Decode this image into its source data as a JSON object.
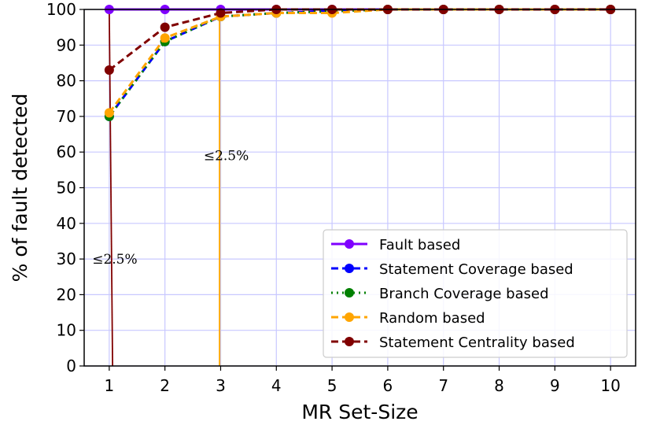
{
  "chart_data": {
    "type": "line",
    "xlabel": "MR Set-Size",
    "ylabel": "% of fault detected",
    "x": [
      1,
      2,
      3,
      4,
      5,
      6,
      7,
      8,
      9,
      10
    ],
    "xlim": [
      0.55,
      10.45
    ],
    "ylim": [
      0,
      100
    ],
    "xticks": [
      "1",
      "2",
      "3",
      "4",
      "5",
      "6",
      "7",
      "8",
      "9",
      "10"
    ],
    "yticks": [
      0,
      10,
      20,
      30,
      40,
      50,
      60,
      70,
      80,
      90,
      100
    ],
    "grid": true,
    "legend_position": "bottom-right",
    "series": [
      {
        "name": "Fault based",
        "color": "#7f00ff",
        "dash": "solid",
        "values": [
          100,
          100,
          100,
          100,
          100,
          100,
          100,
          100,
          100,
          100
        ]
      },
      {
        "name": "Statement Coverage based",
        "color": "#0000ff",
        "dash": "dashed",
        "values": [
          70,
          91,
          98,
          99,
          99.5,
          100,
          100,
          100,
          100,
          100
        ]
      },
      {
        "name": "Branch Coverage based",
        "color": "#008000",
        "dash": "dotted",
        "values": [
          70,
          91,
          98,
          99,
          99.5,
          100,
          100,
          100,
          100,
          100
        ]
      },
      {
        "name": "Random based",
        "color": "#ffa500",
        "dash": "dashed",
        "values": [
          71,
          92,
          98,
          99,
          99,
          100,
          100,
          100,
          100,
          100
        ]
      },
      {
        "name": "Statement Centrality based",
        "color": "#800000",
        "dash": "dashed",
        "values": [
          83,
          95,
          99,
          100,
          100,
          100,
          100,
          100,
          100,
          100
        ]
      }
    ],
    "annotations": [
      {
        "text": "≤2.5%",
        "x": 1.1,
        "y": 30,
        "color": "#800000",
        "line_x_top": 1.0,
        "line_x_bottom": 1.06
      },
      {
        "text": "≤2.5%",
        "x": 3.1,
        "y": 59,
        "color": "#ffa500",
        "line_x_top": 2.98,
        "line_x_bottom": 2.98
      }
    ]
  }
}
